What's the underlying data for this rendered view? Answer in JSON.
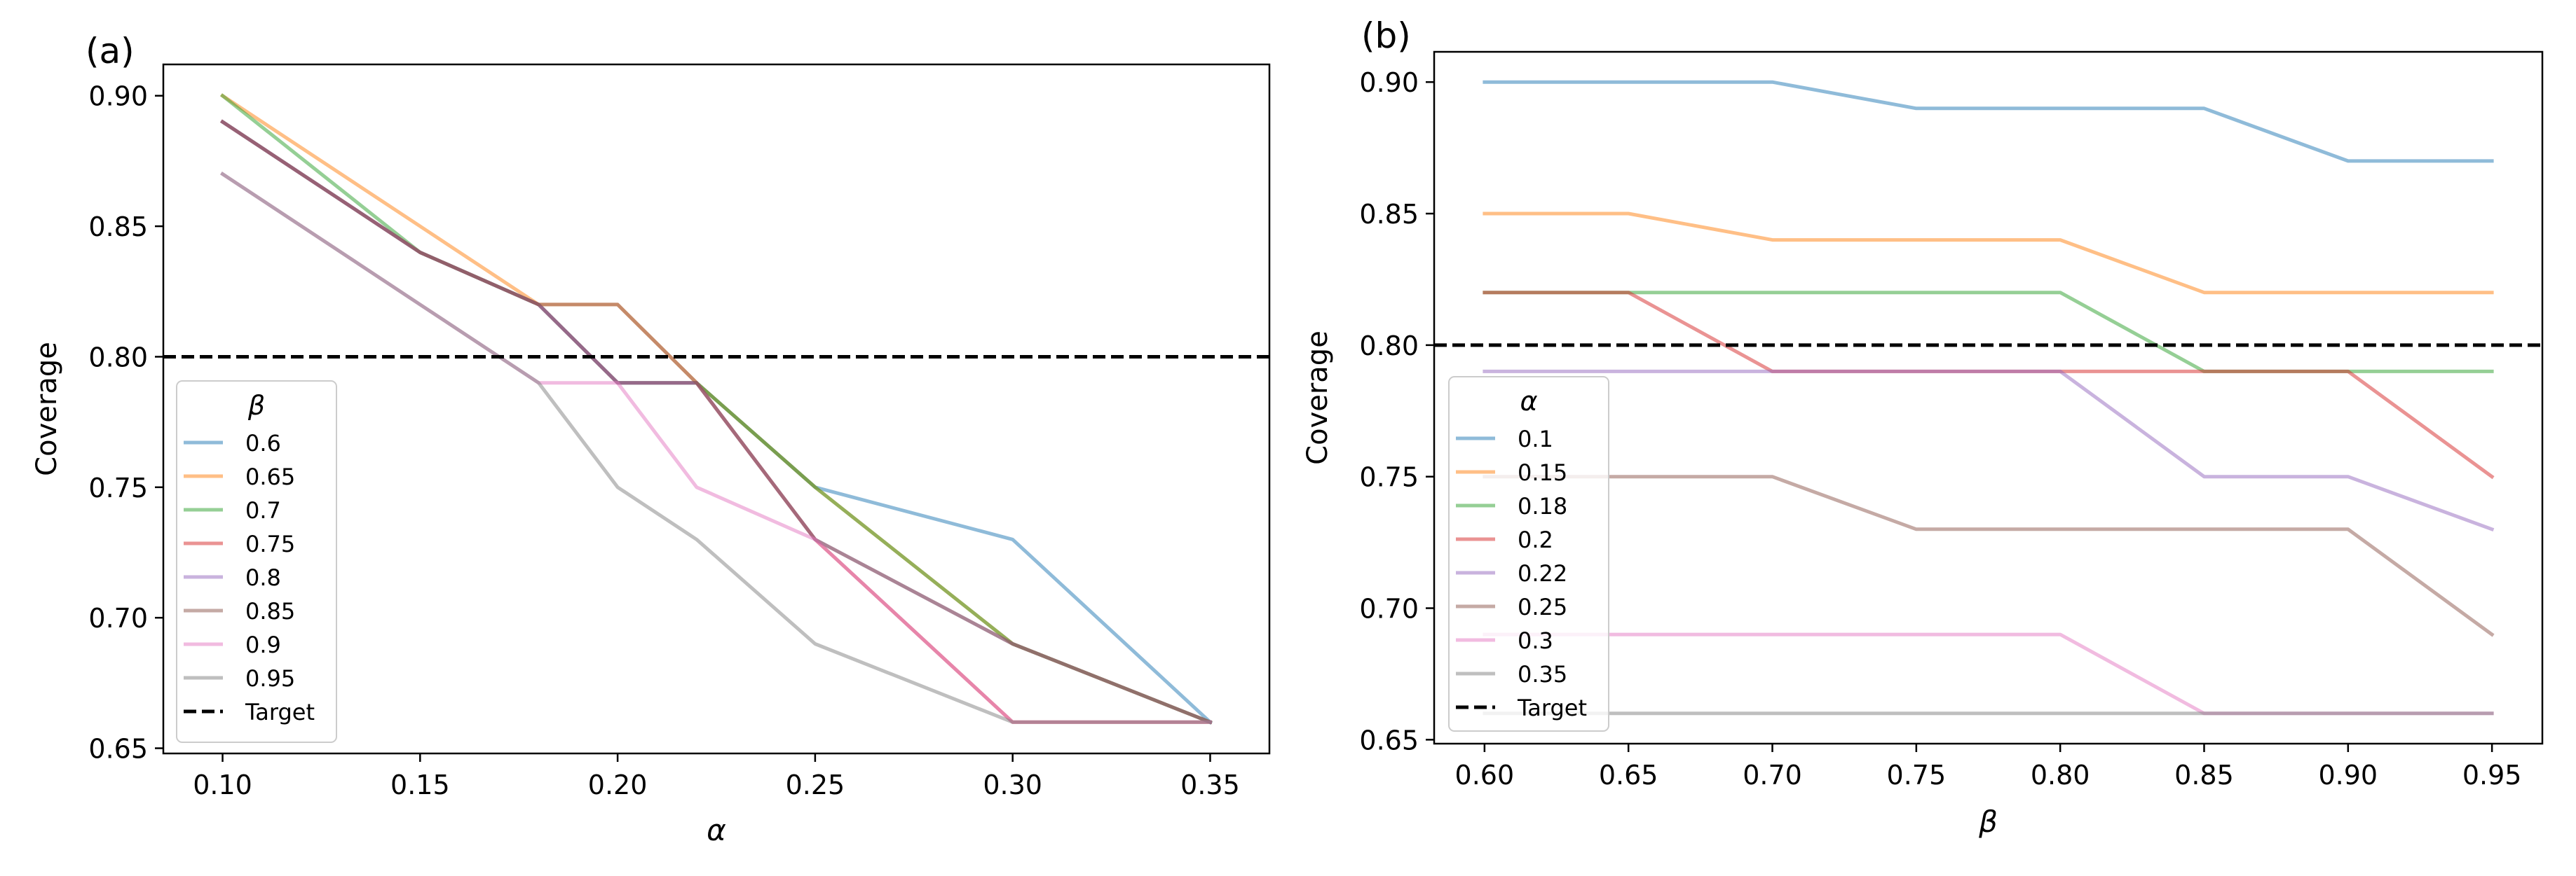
{
  "chart_data": [
    {
      "panel_label": "(a)",
      "type": "line",
      "xlabel": "α",
      "ylabel": "Coverage",
      "xlim": [
        0.085,
        0.365
      ],
      "ylim": [
        0.648,
        0.912
      ],
      "xticks": [
        0.1,
        0.15,
        0.2,
        0.25,
        0.3,
        0.35
      ],
      "xtick_labels": [
        "0.10",
        "0.15",
        "0.20",
        "0.25",
        "0.30",
        "0.35"
      ],
      "yticks": [
        0.65,
        0.7,
        0.75,
        0.8,
        0.85,
        0.9
      ],
      "ytick_labels": [
        "0.65",
        "0.70",
        "0.75",
        "0.80",
        "0.85",
        "0.90"
      ],
      "x": [
        0.1,
        0.15,
        0.18,
        0.2,
        0.22,
        0.25,
        0.3,
        0.35
      ],
      "legend_title": "β",
      "legend_position": "lower-left",
      "grid": false,
      "series": [
        {
          "name": "0.6",
          "color": "#1f77b4",
          "values": [
            0.89,
            0.84,
            0.82,
            0.79,
            0.79,
            0.75,
            0.73,
            0.66
          ]
        },
        {
          "name": "0.65",
          "color": "#ff7f0e",
          "values": [
            0.9,
            0.85,
            0.82,
            0.82,
            0.79,
            0.75,
            0.69,
            0.66
          ]
        },
        {
          "name": "0.7",
          "color": "#2ca02c",
          "values": [
            0.9,
            0.84,
            0.82,
            0.79,
            0.79,
            0.75,
            0.69,
            0.66
          ]
        },
        {
          "name": "0.75",
          "color": "#d62728",
          "values": [
            0.89,
            0.84,
            0.82,
            0.79,
            0.79,
            0.73,
            0.66,
            0.66
          ]
        },
        {
          "name": "0.8",
          "color": "#9467bd",
          "values": [
            0.89,
            0.84,
            0.82,
            0.79,
            0.79,
            0.73,
            0.69,
            0.66
          ]
        },
        {
          "name": "0.85",
          "color": "#8c564b",
          "values": [
            0.89,
            0.84,
            0.82,
            0.82,
            0.79,
            0.73,
            0.69,
            0.66
          ]
        },
        {
          "name": "0.9",
          "color": "#e377c2",
          "values": [
            0.87,
            0.82,
            0.79,
            0.79,
            0.75,
            0.73,
            0.66,
            0.66
          ]
        },
        {
          "name": "0.95",
          "color": "#7f7f7f",
          "values": [
            0.87,
            0.82,
            0.79,
            0.75,
            0.73,
            0.69,
            0.66,
            0.66
          ]
        }
      ],
      "target": {
        "name": "Target",
        "value": 0.8,
        "color": "#000000"
      }
    },
    {
      "panel_label": "(b)",
      "type": "line",
      "xlabel": "β",
      "ylabel": "Coverage",
      "xlim": [
        0.5825,
        0.9675
      ],
      "ylim": [
        0.6485,
        0.9115
      ],
      "xticks": [
        0.6,
        0.65,
        0.7,
        0.75,
        0.8,
        0.85,
        0.9,
        0.95
      ],
      "xtick_labels": [
        "0.60",
        "0.65",
        "0.70",
        "0.75",
        "0.80",
        "0.85",
        "0.90",
        "0.95"
      ],
      "yticks": [
        0.65,
        0.7,
        0.75,
        0.8,
        0.85,
        0.9
      ],
      "ytick_labels": [
        "0.65",
        "0.70",
        "0.75",
        "0.80",
        "0.85",
        "0.90"
      ],
      "x": [
        0.6,
        0.65,
        0.7,
        0.75,
        0.8,
        0.85,
        0.9,
        0.95
      ],
      "legend_title": "α",
      "legend_position": "lower-left",
      "grid": false,
      "series": [
        {
          "name": "0.1",
          "color": "#1f77b4",
          "values": [
            0.9,
            0.9,
            0.9,
            0.89,
            0.89,
            0.89,
            0.87,
            0.87
          ]
        },
        {
          "name": "0.15",
          "color": "#ff7f0e",
          "values": [
            0.85,
            0.85,
            0.84,
            0.84,
            0.84,
            0.82,
            0.82,
            0.82
          ]
        },
        {
          "name": "0.18",
          "color": "#2ca02c",
          "values": [
            0.82,
            0.82,
            0.82,
            0.82,
            0.82,
            0.79,
            0.79,
            0.79
          ]
        },
        {
          "name": "0.2",
          "color": "#d62728",
          "values": [
            0.82,
            0.82,
            0.79,
            0.79,
            0.79,
            0.79,
            0.79,
            0.75
          ]
        },
        {
          "name": "0.22",
          "color": "#9467bd",
          "values": [
            0.79,
            0.79,
            0.79,
            0.79,
            0.79,
            0.75,
            0.75,
            0.73
          ]
        },
        {
          "name": "0.25",
          "color": "#8c564b",
          "values": [
            0.75,
            0.75,
            0.75,
            0.73,
            0.73,
            0.73,
            0.73,
            0.69
          ]
        },
        {
          "name": "0.3",
          "color": "#e377c2",
          "values": [
            0.69,
            0.69,
            0.69,
            0.69,
            0.69,
            0.66,
            0.66,
            0.66
          ]
        },
        {
          "name": "0.35",
          "color": "#7f7f7f",
          "values": [
            0.66,
            0.66,
            0.66,
            0.66,
            0.66,
            0.66,
            0.66,
            0.66
          ]
        }
      ],
      "target": {
        "name": "Target",
        "value": 0.8,
        "color": "#000000"
      }
    }
  ]
}
